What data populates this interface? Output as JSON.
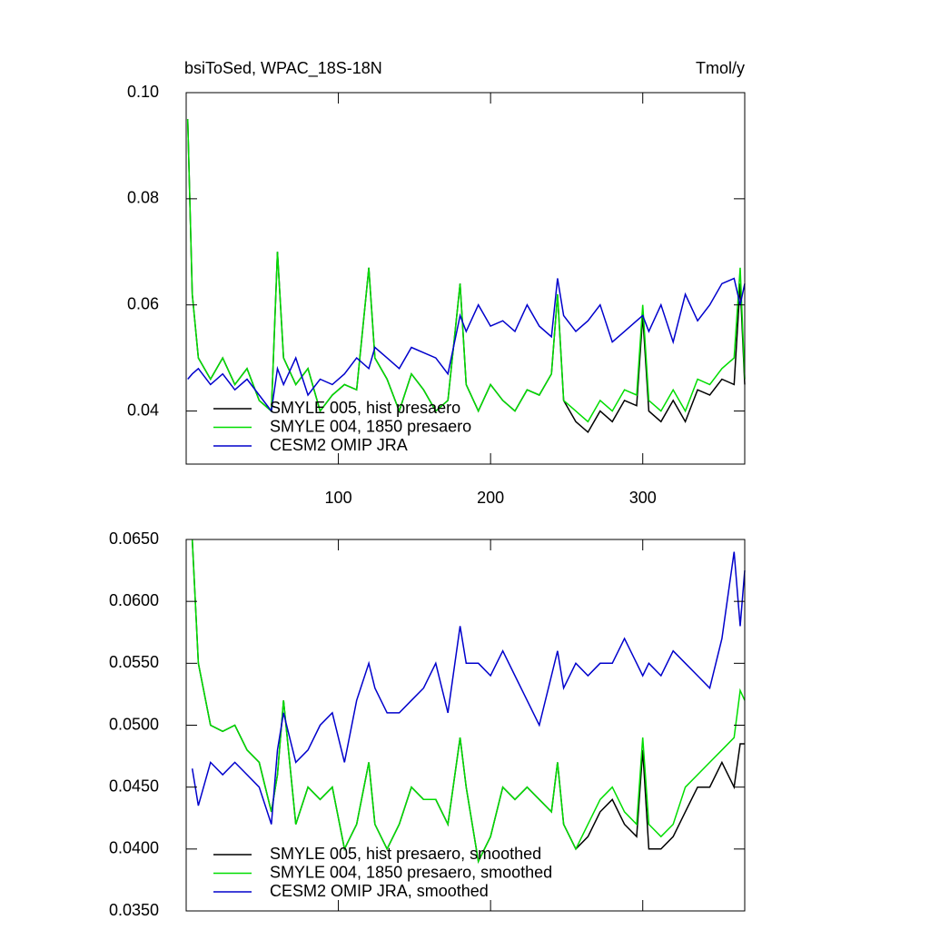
{
  "chart_data": [
    {
      "type": "line",
      "title": "bsiToSed, WPAC_18S-18N",
      "right_title": "Tmol/y",
      "x": [
        1,
        4,
        8,
        16,
        24,
        32,
        40,
        48,
        56,
        60,
        64,
        72,
        80,
        88,
        96,
        104,
        112,
        120,
        124,
        132,
        140,
        148,
        156,
        164,
        172,
        180,
        184,
        192,
        200,
        208,
        216,
        224,
        232,
        240,
        244,
        248,
        256,
        264,
        272,
        280,
        288,
        296,
        300,
        304,
        312,
        320,
        328,
        336,
        344,
        352,
        360,
        364,
        367
      ],
      "series": [
        {
          "name": "SMYLE 005, hist presaero",
          "color": "#000000",
          "values": [
            0.095,
            0.062,
            0.05,
            0.046,
            0.05,
            0.045,
            0.048,
            0.042,
            0.04,
            0.07,
            0.05,
            0.045,
            0.048,
            0.04,
            0.043,
            0.045,
            0.044,
            0.067,
            0.05,
            0.046,
            0.04,
            0.047,
            0.044,
            0.04,
            0.042,
            0.064,
            0.045,
            0.04,
            0.045,
            0.042,
            0.04,
            0.044,
            0.043,
            0.047,
            0.062,
            0.042,
            0.038,
            0.036,
            0.04,
            0.038,
            0.042,
            0.041,
            0.058,
            0.04,
            0.038,
            0.042,
            0.038,
            0.044,
            0.043,
            0.046,
            0.045,
            0.064,
            0.045
          ]
        },
        {
          "name": "SMYLE 004, 1850 presaero",
          "color": "#00dd00",
          "values": [
            0.095,
            0.062,
            0.05,
            0.046,
            0.05,
            0.045,
            0.048,
            0.042,
            0.04,
            0.07,
            0.05,
            0.045,
            0.048,
            0.04,
            0.043,
            0.045,
            0.044,
            0.067,
            0.05,
            0.046,
            0.04,
            0.047,
            0.044,
            0.04,
            0.042,
            0.064,
            0.045,
            0.04,
            0.045,
            0.042,
            0.04,
            0.044,
            0.043,
            0.047,
            0.062,
            0.042,
            0.04,
            0.038,
            0.042,
            0.04,
            0.044,
            0.043,
            0.06,
            0.042,
            0.04,
            0.044,
            0.04,
            0.046,
            0.045,
            0.048,
            0.05,
            0.067,
            0.046
          ]
        },
        {
          "name": "CESM2 OMIP JRA",
          "color": "#0000cc",
          "values": [
            0.046,
            0.047,
            0.048,
            0.045,
            0.047,
            0.044,
            0.046,
            0.043,
            0.04,
            0.048,
            0.045,
            0.05,
            0.043,
            0.046,
            0.045,
            0.047,
            0.05,
            0.048,
            0.052,
            0.05,
            0.048,
            0.052,
            0.051,
            0.05,
            0.047,
            0.058,
            0.055,
            0.06,
            0.056,
            0.057,
            0.055,
            0.06,
            0.056,
            0.054,
            0.065,
            0.058,
            0.055,
            0.057,
            0.06,
            0.053,
            0.055,
            0.057,
            0.058,
            0.055,
            0.06,
            0.053,
            0.062,
            0.057,
            0.06,
            0.064,
            0.065,
            0.06,
            0.064
          ]
        }
      ],
      "xlim": [
        0,
        367
      ],
      "xticks": [
        100,
        200,
        300
      ],
      "ylim": [
        0.03,
        0.1
      ],
      "yticks": [
        0.04,
        0.06,
        0.08,
        {
          "value": 0.1,
          "label": "0.10"
        }
      ],
      "legend": "lower left"
    },
    {
      "type": "line",
      "x": [
        4,
        8,
        16,
        24,
        32,
        40,
        48,
        56,
        60,
        64,
        72,
        80,
        88,
        96,
        104,
        112,
        120,
        124,
        132,
        140,
        148,
        156,
        164,
        172,
        180,
        184,
        192,
        200,
        208,
        216,
        224,
        232,
        240,
        244,
        248,
        256,
        264,
        272,
        280,
        288,
        296,
        300,
        304,
        312,
        320,
        328,
        336,
        344,
        352,
        360,
        364,
        367
      ],
      "series": [
        {
          "name": "SMYLE 005, hist presaero, smoothed",
          "color": "#000000",
          "values": [
            0.065,
            0.055,
            0.05,
            0.0495,
            0.05,
            0.048,
            0.047,
            0.043,
            0.046,
            0.052,
            0.042,
            0.045,
            0.044,
            0.045,
            0.04,
            0.042,
            0.047,
            0.042,
            0.04,
            0.042,
            0.045,
            0.044,
            0.044,
            0.042,
            0.049,
            0.045,
            0.039,
            0.041,
            0.045,
            0.044,
            0.045,
            0.044,
            0.043,
            0.047,
            0.042,
            0.04,
            0.041,
            0.043,
            0.044,
            0.042,
            0.041,
            0.048,
            0.04,
            0.04,
            0.041,
            0.043,
            0.045,
            0.045,
            0.047,
            0.045,
            0.0485,
            0.0485
          ]
        },
        {
          "name": "SMYLE 004, 1850 presaero, smoothed",
          "color": "#00dd00",
          "values": [
            0.065,
            0.055,
            0.05,
            0.0495,
            0.05,
            0.048,
            0.047,
            0.043,
            0.046,
            0.052,
            0.042,
            0.045,
            0.044,
            0.045,
            0.04,
            0.042,
            0.047,
            0.042,
            0.04,
            0.042,
            0.045,
            0.044,
            0.044,
            0.042,
            0.049,
            0.045,
            0.039,
            0.041,
            0.045,
            0.044,
            0.045,
            0.044,
            0.043,
            0.047,
            0.042,
            0.04,
            0.042,
            0.044,
            0.045,
            0.043,
            0.042,
            0.049,
            0.042,
            0.041,
            0.042,
            0.045,
            0.046,
            0.047,
            0.048,
            0.049,
            0.0528,
            0.052
          ]
        },
        {
          "name": "CESM2 OMIP JRA, smoothed",
          "color": "#0000cc",
          "values": [
            0.0465,
            0.0435,
            0.047,
            0.046,
            0.047,
            0.046,
            0.045,
            0.042,
            0.048,
            0.051,
            0.047,
            0.048,
            0.05,
            0.051,
            0.047,
            0.052,
            0.055,
            0.053,
            0.051,
            0.051,
            0.052,
            0.053,
            0.055,
            0.051,
            0.058,
            0.055,
            0.055,
            0.054,
            0.056,
            0.054,
            0.052,
            0.05,
            0.054,
            0.056,
            0.053,
            0.055,
            0.054,
            0.055,
            0.055,
            0.057,
            0.055,
            0.054,
            0.055,
            0.054,
            0.056,
            0.055,
            0.054,
            0.053,
            0.057,
            0.064,
            0.058,
            0.0625
          ]
        }
      ],
      "xlim": [
        0,
        367
      ],
      "ylim": [
        0.035,
        0.065
      ],
      "yticks": [
        {
          "value": 0.035,
          "label": "0.0350"
        },
        {
          "value": 0.04,
          "label": "0.0400"
        },
        {
          "value": 0.045,
          "label": "0.0450"
        },
        {
          "value": 0.05,
          "label": "0.0500"
        },
        {
          "value": 0.055,
          "label": "0.0550"
        },
        {
          "value": 0.06,
          "label": "0.0600"
        },
        {
          "value": 0.065,
          "label": "0.0650"
        }
      ],
      "legend": "lower left"
    }
  ]
}
